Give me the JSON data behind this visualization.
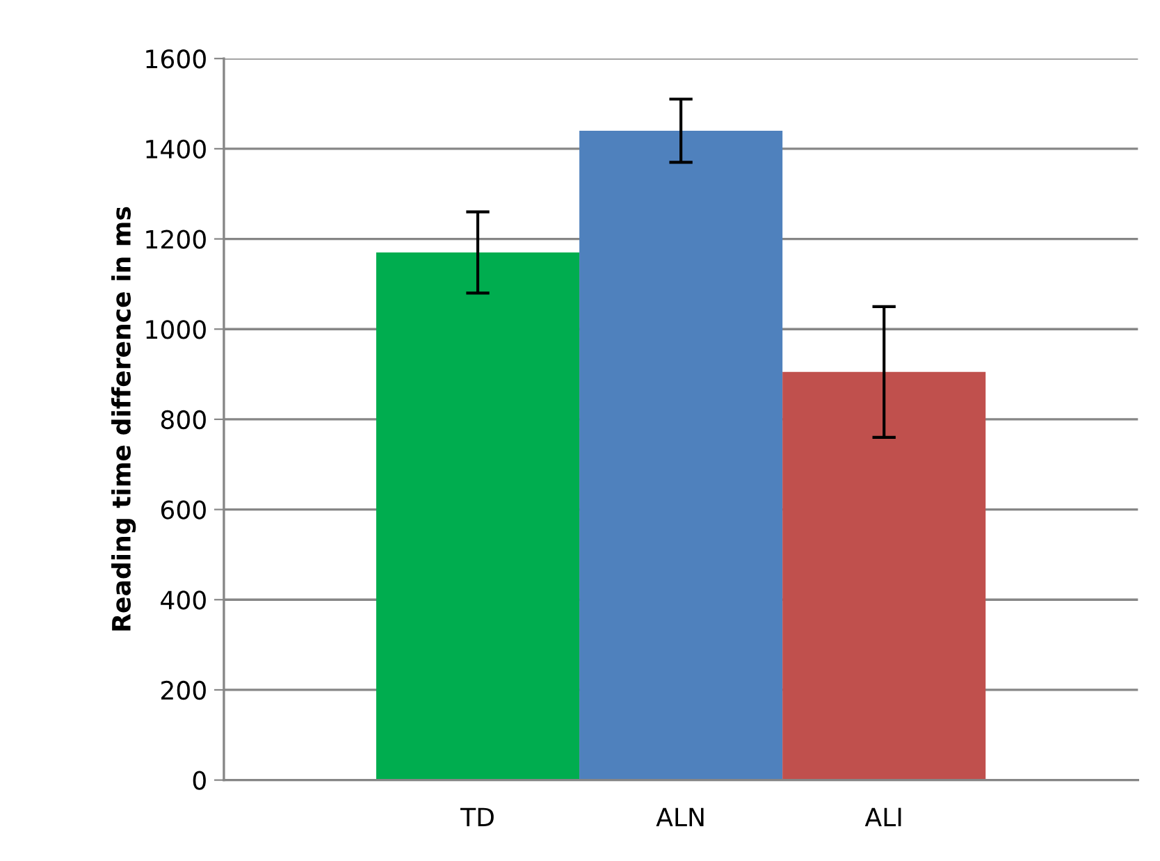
{
  "chart_data": {
    "type": "bar",
    "ylabel": "Reading time difference in ms",
    "categories": [
      "TD",
      "ALN",
      "ALI"
    ],
    "values": [
      1170,
      1440,
      905
    ],
    "colors": [
      "#00ad4f",
      "#4f81bd",
      "#c0504d"
    ],
    "errors": [
      90,
      70,
      145
    ],
    "ylim": [
      0,
      1600
    ],
    "yticks": [
      0,
      200,
      400,
      600,
      800,
      1000,
      1200,
      1400,
      1600
    ],
    "grid": "y"
  }
}
